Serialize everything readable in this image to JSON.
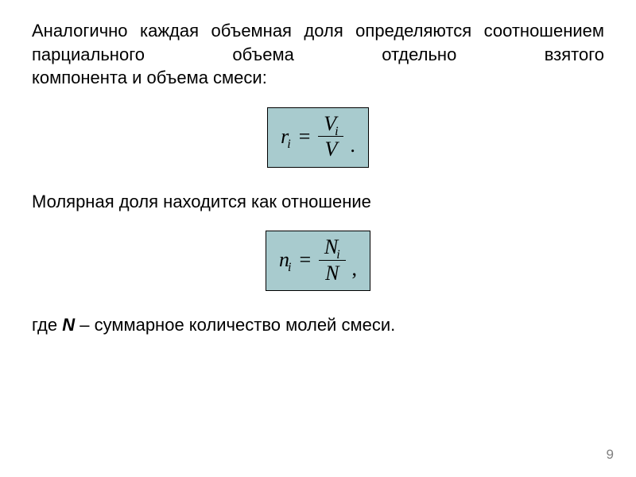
{
  "text": {
    "para1_lines": "Аналогично каждая объемная доля определяются соотношением парциального объема отдельно взятого",
    "para1_last": "компонента и объема смеси:",
    "para2": "Молярная доля находится как отношение",
    "para3_prefix": "где ",
    "para3_var": "N",
    "para3_suffix": " –  суммарное количество молей смеси."
  },
  "formulas": {
    "f1": {
      "lhs_main": "r",
      "lhs_sub": "i",
      "num_main": "V",
      "num_sub": "i",
      "den": "V",
      "tail": ".",
      "bg": "#a8cbce",
      "border": "#000000"
    },
    "f2": {
      "lhs_main": "n",
      "lhs_sub": "i",
      "num_main": "N",
      "num_sub": "i",
      "den": "N",
      "tail": ",",
      "bg": "#a8cbce",
      "border": "#000000"
    }
  },
  "page_number": "9",
  "colors": {
    "page_bg": "#ffffff",
    "text": "#000000",
    "page_num": "#808080"
  },
  "fonts": {
    "body": "Arial",
    "math": "Times New Roman"
  }
}
